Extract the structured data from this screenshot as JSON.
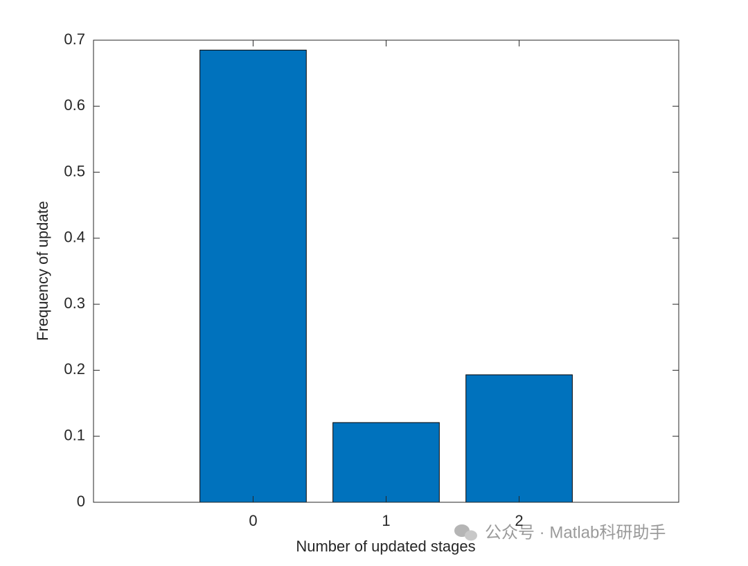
{
  "chart_data": {
    "type": "bar",
    "x": [
      0,
      1,
      2
    ],
    "values": [
      0.685,
      0.1207,
      0.1931
    ],
    "color": "#0072BD",
    "bar_width": 0.8,
    "xlim": [
      -1.2,
      3.2
    ],
    "xticks": [
      0,
      1,
      2
    ],
    "ylim": [
      0,
      0.7
    ],
    "yticks": [
      0,
      0.1,
      0.2,
      0.3,
      0.4,
      0.5,
      0.6,
      0.7
    ],
    "xlabel": "Number of updated stages",
    "ylabel": "Frequency of update",
    "watermark": "公众号 · Matlab科研助手"
  }
}
